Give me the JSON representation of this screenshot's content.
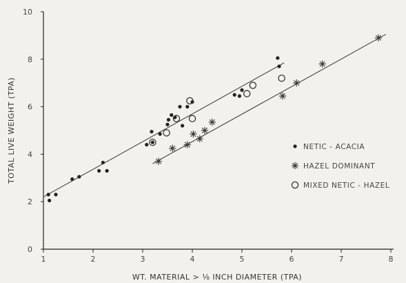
{
  "chart_data": {
    "type": "scatter",
    "title": "",
    "xlabel": "WT. MATERIAL > ⅛ INCH DIAMETER (TPA)",
    "ylabel": "TOTAL LIVE WEIGHT (TPA)",
    "xlim": [
      1,
      8
    ],
    "ylim": [
      0,
      10
    ],
    "x_ticks": [
      "1",
      "2",
      "3",
      "4",
      "5",
      "6",
      "7",
      "8"
    ],
    "y_ticks": [
      "0",
      "2",
      "4",
      "6",
      "8",
      "10"
    ],
    "grid": false,
    "legend_position": "right",
    "series": [
      {
        "name": "NETIC - ACACIA",
        "marker": "dot",
        "x": [
          1.1,
          1.12,
          1.25,
          1.58,
          1.72,
          2.12,
          2.2,
          2.28,
          3.08,
          3.18,
          3.2,
          3.35,
          3.5,
          3.52,
          3.58,
          3.65,
          3.75,
          3.8,
          3.9,
          4.0,
          4.85,
          4.95,
          5.0,
          5.72,
          5.75
        ],
        "y": [
          2.3,
          2.05,
          2.3,
          2.95,
          3.05,
          3.3,
          3.65,
          3.3,
          4.4,
          4.95,
          4.5,
          4.85,
          5.25,
          5.45,
          5.65,
          5.55,
          6.0,
          5.2,
          6.0,
          6.2,
          6.5,
          6.45,
          6.7,
          8.05,
          7.7
        ]
      },
      {
        "name": "HAZEL DOMINANT",
        "marker": "star",
        "x": [
          3.32,
          3.6,
          3.9,
          4.02,
          4.15,
          4.25,
          4.4,
          5.82,
          6.1,
          6.62,
          7.75
        ],
        "y": [
          3.7,
          4.25,
          4.4,
          4.85,
          4.65,
          5.0,
          5.35,
          6.45,
          7.0,
          7.8,
          8.9
        ]
      },
      {
        "name": "MIXED NETIC - HAZEL",
        "marker": "circle",
        "x": [
          3.2,
          3.48,
          3.68,
          3.95,
          4.0,
          5.1,
          5.22,
          5.8
        ],
        "y": [
          4.5,
          4.9,
          5.5,
          6.25,
          5.5,
          6.55,
          6.9,
          7.2
        ]
      }
    ],
    "fit_lines": [
      {
        "x": [
          1.0,
          5.85
        ],
        "y": [
          2.2,
          7.85
        ]
      },
      {
        "x": [
          3.2,
          7.9
        ],
        "y": [
          3.6,
          9.05
        ]
      }
    ]
  }
}
